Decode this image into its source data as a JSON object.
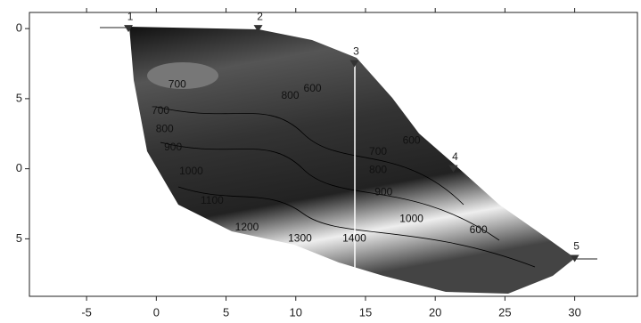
{
  "chart_data": {
    "type": "contour",
    "xlim": [
      -9.1,
      34.5
    ],
    "ylim": [
      -1.15,
      19.1
    ],
    "xticks": [
      -5,
      0,
      5,
      10,
      15,
      20,
      25,
      30
    ],
    "yticks": [
      0,
      5,
      {
        "value": 10,
        "label": "0"
      },
      {
        "value": 15,
        "label": "5"
      }
    ],
    "contour_labels": [
      {
        "level": 700,
        "x": 1.5,
        "y": 4.0
      },
      {
        "level": 800,
        "x": 9.6,
        "y": 4.8
      },
      {
        "level": 600,
        "x": 11.2,
        "y": 4.3
      },
      {
        "level": 700,
        "x": 0.3,
        "y": 5.9
      },
      {
        "level": 800,
        "x": 0.6,
        "y": 7.2
      },
      {
        "level": 900,
        "x": 1.2,
        "y": 8.5
      },
      {
        "level": 1000,
        "x": 2.5,
        "y": 10.2
      },
      {
        "level": 1100,
        "x": 4.0,
        "y": 12.3
      },
      {
        "level": 1200,
        "x": 6.5,
        "y": 14.2
      },
      {
        "level": 1300,
        "x": 10.3,
        "y": 15.0
      },
      {
        "level": 1400,
        "x": 14.2,
        "y": 15.0
      },
      {
        "level": 600,
        "x": 18.3,
        "y": 8.0
      },
      {
        "level": 700,
        "x": 15.9,
        "y": 8.8
      },
      {
        "level": 800,
        "x": 15.9,
        "y": 10.1
      },
      {
        "level": 900,
        "x": 16.3,
        "y": 11.7
      },
      {
        "level": 1000,
        "x": 18.3,
        "y": 13.6
      },
      {
        "level": 600,
        "x": 23.1,
        "y": 14.4
      }
    ],
    "stations": [
      {
        "label": 1,
        "x": -2,
        "y": 0
      },
      {
        "label": 2,
        "x": 7.3,
        "y": 0
      },
      {
        "label": 3,
        "x": 14.2,
        "y": 2.5
      },
      {
        "label": 4,
        "x": 21.3,
        "y": 10
      },
      {
        "label": 5,
        "x": 30,
        "y": 16.4
      }
    ]
  }
}
